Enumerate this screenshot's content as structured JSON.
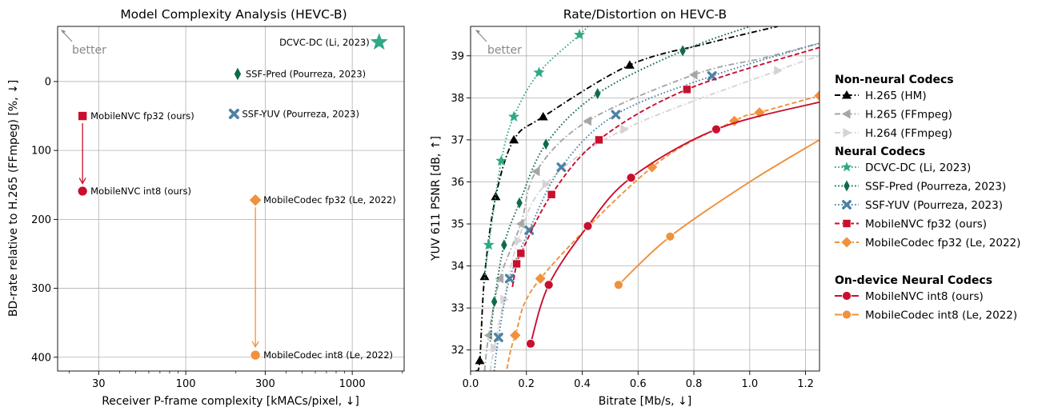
{
  "colors": {
    "mobilenvc": "#c8102e",
    "mobilecodec": "#f0913c",
    "dcvc": "#2fa886",
    "ssfpred": "#0e6b4a",
    "ssfyuv": "#4d82a3",
    "h265hm": "#000000",
    "h265ff": "#a6a6a6",
    "h264ff": "#d4d4d4",
    "better": "#888888"
  },
  "chart_data": [
    {
      "type": "scatter",
      "title": "Model Complexity Analysis (HEVC-B)",
      "xlabel": "Receiver P-frame complexity [kMACs/pixel, ↓]",
      "ylabel": "BD-rate relative to H.265 (FFmpeg) [%, ↓]",
      "x_scale": "log",
      "xlim": [
        17,
        2050
      ],
      "ylim": [
        -80,
        420
      ],
      "y_inverted": true,
      "x_ticks": [
        30,
        100,
        300,
        1000
      ],
      "x_tick_labels": [
        "30",
        "100",
        "300",
        "1000"
      ],
      "y_ticks": [
        0,
        100,
        200,
        300,
        400
      ],
      "y_tick_labels": [
        "0",
        "100",
        "200",
        "300",
        "400"
      ],
      "grid": true,
      "better_label": "better",
      "points": [
        {
          "label": "DCVC-DC (Li, 2023)",
          "x": 1450,
          "y": -57,
          "marker": "star",
          "color": "#2fa886",
          "label_side": "left"
        },
        {
          "label": "SSF-Pred (Pourreza, 2023)",
          "x": 205,
          "y": -11,
          "marker": "thin_diamond",
          "color": "#0e6b4a",
          "label_side": "right"
        },
        {
          "label": "SSF-YUV (Pourreza, 2023)",
          "x": 195,
          "y": 47,
          "marker": "x",
          "color": "#4d82a3",
          "label_side": "right"
        },
        {
          "label": "MobileNVC fp32 (ours)",
          "x": 24,
          "y": 50,
          "marker": "square",
          "color": "#c8102e",
          "label_side": "right"
        },
        {
          "label": "MobileNVC int8 (ours)",
          "x": 24,
          "y": 159,
          "marker": "circle",
          "color": "#c8102e",
          "label_side": "right"
        },
        {
          "label": "MobileCodec fp32 (Le, 2022)",
          "x": 262,
          "y": 172,
          "marker": "diamond",
          "color": "#f0913c",
          "label_side": "right"
        },
        {
          "label": "MobileCodec int8 (Le, 2022)",
          "x": 262,
          "y": 397,
          "marker": "circle",
          "color": "#f0913c",
          "label_side": "right"
        }
      ],
      "arrows": [
        {
          "x": 24,
          "from_y": 50,
          "to_y": 148,
          "color": "#c8102e"
        },
        {
          "x": 262,
          "from_y": 172,
          "to_y": 385,
          "color": "#f0913c"
        }
      ]
    },
    {
      "type": "line",
      "title": "Rate/Distortion on HEVC-B",
      "xlabel": "Bitrate [Mb/s, ↓]",
      "ylabel": "YUV 611 PSNR [dB, ↑]",
      "xlim": [
        0,
        1.25
      ],
      "ylim": [
        31.5,
        39.7
      ],
      "x_ticks": [
        0,
        0.2,
        0.4,
        0.6,
        0.8,
        1.0,
        1.2
      ],
      "x_tick_labels": [
        "0.0",
        "0.2",
        "0.4",
        "0.6",
        "0.8",
        "1.0",
        "1.2"
      ],
      "y_ticks": [
        32,
        33,
        34,
        35,
        36,
        37,
        38,
        39
      ],
      "y_tick_labels": [
        "32",
        "33",
        "34",
        "35",
        "36",
        "37",
        "38",
        "39"
      ],
      "grid": true,
      "better_label": "better",
      "legend_placement": "outside right",
      "legend_groups": [
        "Non-neural Codecs",
        "Neural Codecs",
        "On-device Neural Codecs"
      ],
      "series": [
        {
          "name": "H.265 (HM)",
          "group": 0,
          "color": "#000000",
          "dash": "dashdot",
          "marker": "triangle_up",
          "markers": [
            [
              0.033,
              31.75
            ],
            [
              0.05,
              33.75
            ],
            [
              0.09,
              35.65
            ],
            [
              0.155,
              37.0
            ],
            [
              0.26,
              37.55
            ],
            [
              0.57,
              38.78
            ]
          ],
          "curve": [
            [
              0.02,
              31.5
            ],
            [
              0.033,
              31.75
            ],
            [
              0.05,
              33.75
            ],
            [
              0.09,
              35.65
            ],
            [
              0.155,
              37.0
            ],
            [
              0.26,
              37.55
            ],
            [
              0.57,
              38.78
            ],
            [
              0.85,
              39.3
            ],
            [
              1.1,
              39.7
            ]
          ]
        },
        {
          "name": "H.265 (FFmpeg)",
          "group": 0,
          "color": "#a6a6a6",
          "dash": "dashdot",
          "marker": "triangle_left",
          "markers": [
            [
              0.065,
              32.35
            ],
            [
              0.105,
              33.7
            ],
            [
              0.18,
              35.0
            ],
            [
              0.235,
              36.25
            ],
            [
              0.42,
              37.45
            ],
            [
              0.8,
              38.55
            ]
          ],
          "curve": [
            [
              0.05,
              31.5
            ],
            [
              0.065,
              32.35
            ],
            [
              0.105,
              33.7
            ],
            [
              0.18,
              35.0
            ],
            [
              0.235,
              36.25
            ],
            [
              0.42,
              37.45
            ],
            [
              0.8,
              38.55
            ],
            [
              1.05,
              38.95
            ],
            [
              1.25,
              39.3
            ]
          ]
        },
        {
          "name": "H.264 (FFmpeg)",
          "group": 0,
          "color": "#d4d4d4",
          "dash": "dashdot",
          "marker": "triangle_right",
          "markers": [
            [
              0.085,
              32.05
            ],
            [
              0.12,
              33.2
            ],
            [
              0.17,
              34.6
            ],
            [
              0.27,
              35.95
            ],
            [
              0.55,
              37.25
            ],
            [
              1.1,
              38.65
            ]
          ],
          "curve": [
            [
              0.07,
              31.5
            ],
            [
              0.085,
              32.05
            ],
            [
              0.12,
              33.2
            ],
            [
              0.17,
              34.6
            ],
            [
              0.27,
              35.95
            ],
            [
              0.55,
              37.25
            ],
            [
              1.1,
              38.65
            ],
            [
              1.25,
              39.0
            ]
          ]
        },
        {
          "name": "DCVC-DC (Li, 2023)",
          "group": 1,
          "color": "#2fa886",
          "dash": "dotted",
          "marker": "star",
          "markers": [
            [
              0.065,
              34.5
            ],
            [
              0.11,
              36.5
            ],
            [
              0.155,
              37.55
            ],
            [
              0.245,
              38.6
            ],
            [
              0.39,
              39.5
            ]
          ],
          "curve": [
            [
              0.05,
              33.7
            ],
            [
              0.065,
              34.5
            ],
            [
              0.11,
              36.5
            ],
            [
              0.155,
              37.55
            ],
            [
              0.245,
              38.6
            ],
            [
              0.39,
              39.5
            ],
            [
              0.42,
              39.7
            ]
          ]
        },
        {
          "name": "SSF-Pred (Pourreza, 2023)",
          "group": 1,
          "color": "#0e6b4a",
          "dash": "dotted",
          "marker": "thin_diamond",
          "markers": [
            [
              0.085,
              33.15
            ],
            [
              0.12,
              34.5
            ],
            [
              0.175,
              35.5
            ],
            [
              0.27,
              36.9
            ],
            [
              0.455,
              38.1
            ],
            [
              0.76,
              39.12
            ]
          ],
          "curve": [
            [
              0.07,
              32.2
            ],
            [
              0.085,
              33.15
            ],
            [
              0.12,
              34.5
            ],
            [
              0.175,
              35.5
            ],
            [
              0.27,
              36.9
            ],
            [
              0.455,
              38.1
            ],
            [
              0.76,
              39.12
            ],
            [
              1.0,
              39.7
            ]
          ]
        },
        {
          "name": "SSF-YUV (Pourreza, 2023)",
          "group": 1,
          "color": "#4d82a3",
          "dash": "dotted",
          "marker": "x",
          "markers": [
            [
              0.1,
              32.3
            ],
            [
              0.14,
              33.7
            ],
            [
              0.21,
              34.85
            ],
            [
              0.325,
              36.35
            ],
            [
              0.52,
              37.6
            ],
            [
              0.865,
              38.52
            ]
          ],
          "curve": [
            [
              0.085,
              31.5
            ],
            [
              0.1,
              32.3
            ],
            [
              0.14,
              33.7
            ],
            [
              0.21,
              34.85
            ],
            [
              0.325,
              36.35
            ],
            [
              0.52,
              37.6
            ],
            [
              0.865,
              38.52
            ],
            [
              1.25,
              39.3
            ]
          ]
        },
        {
          "name": "MobileNVC fp32 (ours)",
          "group": 1,
          "color": "#c8102e",
          "dash": "dashed",
          "marker": "square",
          "markers": [
            [
              0.165,
              34.05
            ],
            [
              0.18,
              34.3
            ],
            [
              0.29,
              35.7
            ],
            [
              0.46,
              37.0
            ],
            [
              0.775,
              38.2
            ]
          ],
          "curve": [
            [
              0.15,
              33.5
            ],
            [
              0.165,
              34.05
            ],
            [
              0.18,
              34.3
            ],
            [
              0.29,
              35.7
            ],
            [
              0.46,
              37.0
            ],
            [
              0.775,
              38.2
            ],
            [
              1.25,
              39.2
            ]
          ]
        },
        {
          "name": "MobileCodec fp32 (Le, 2022)",
          "group": 1,
          "color": "#f0913c",
          "dash": "dashed",
          "marker": "diamond",
          "markers": [
            [
              0.16,
              32.35
            ],
            [
              0.25,
              33.7
            ],
            [
              0.65,
              36.35
            ],
            [
              0.945,
              37.45
            ],
            [
              1.035,
              37.65
            ],
            [
              1.25,
              38.05
            ]
          ],
          "curve": [
            [
              0.13,
              31.55
            ],
            [
              0.16,
              32.35
            ],
            [
              0.25,
              33.7
            ],
            [
              0.65,
              36.35
            ],
            [
              0.945,
              37.45
            ],
            [
              1.035,
              37.65
            ],
            [
              1.25,
              38.05
            ]
          ]
        },
        {
          "name": "MobileNVC int8 (ours)",
          "group": 2,
          "color": "#c8102e",
          "dash": "solid",
          "marker": "circle",
          "markers": [
            [
              0.215,
              32.15
            ],
            [
              0.28,
              33.55
            ],
            [
              0.42,
              34.95
            ],
            [
              0.575,
              36.1
            ],
            [
              0.88,
              37.25
            ]
          ],
          "curve": [
            [
              0.215,
              32.15
            ],
            [
              0.28,
              33.55
            ],
            [
              0.42,
              34.95
            ],
            [
              0.575,
              36.1
            ],
            [
              0.88,
              37.25
            ],
            [
              1.25,
              37.9
            ]
          ]
        },
        {
          "name": "MobileCodec int8 (Le, 2022)",
          "group": 2,
          "color": "#f0913c",
          "dash": "solid",
          "marker": "circle",
          "markers": [
            [
              0.53,
              33.55
            ],
            [
              0.715,
              34.7
            ]
          ],
          "curve": [
            [
              0.53,
              33.55
            ],
            [
              0.715,
              34.7
            ],
            [
              1.0,
              36.0
            ],
            [
              1.25,
              37.0
            ]
          ]
        }
      ]
    }
  ]
}
